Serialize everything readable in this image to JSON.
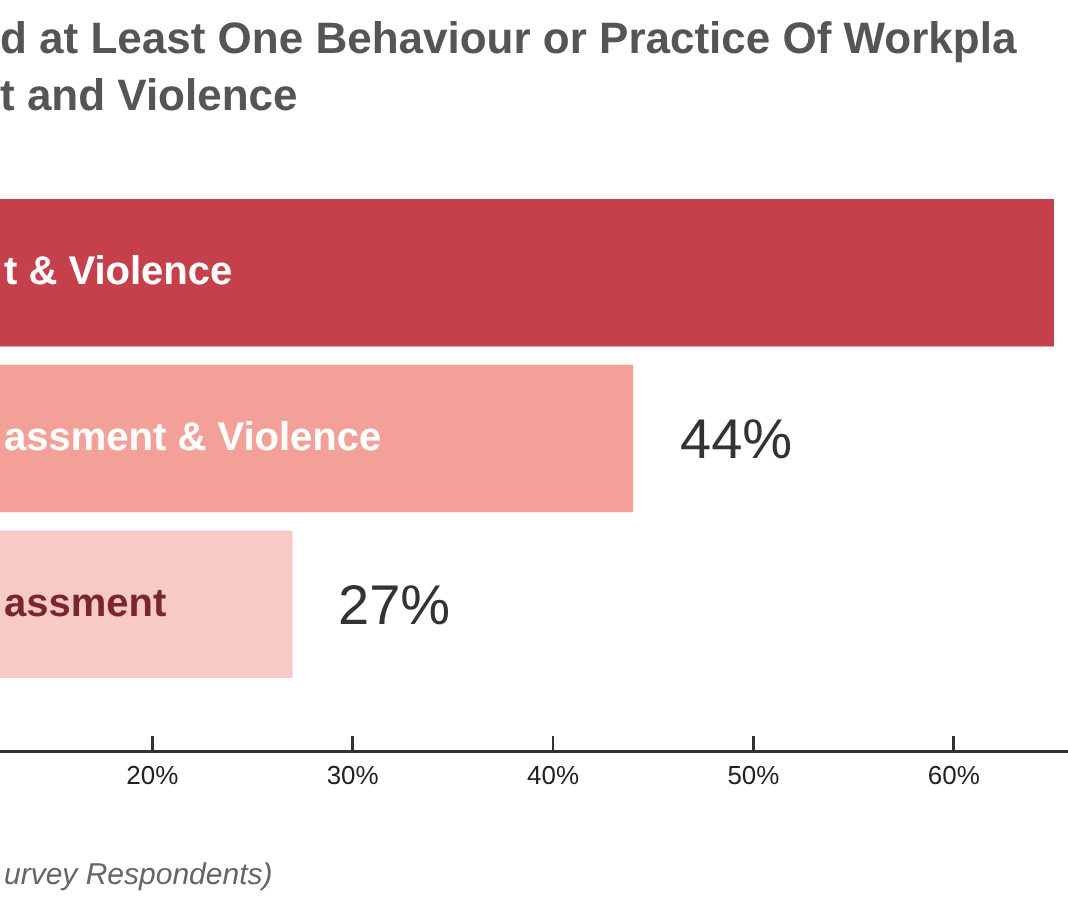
{
  "chart_data": {
    "type": "bar",
    "orientation": "horizontal",
    "title": "d at Least One Behaviour or Practice Of Workpla\nt and Violence",
    "xlabel": "urvey Respondents)",
    "categories": [
      "t & Violence",
      "assment & Violence",
      "assment"
    ],
    "values": [
      65,
      44,
      27
    ],
    "colors": [
      "#c5404a",
      "#f3a198",
      "#f7cac6"
    ],
    "value_labels": [
      null,
      "44%",
      "27%"
    ],
    "xlim": [
      12.4,
      65.7
    ],
    "xticks": [
      {
        "value": 20,
        "label": "20%"
      },
      {
        "value": 30,
        "label": "30%"
      },
      {
        "value": 40,
        "label": "40%"
      },
      {
        "value": 50,
        "label": "50%"
      },
      {
        "value": 60,
        "label": "60%"
      }
    ]
  }
}
